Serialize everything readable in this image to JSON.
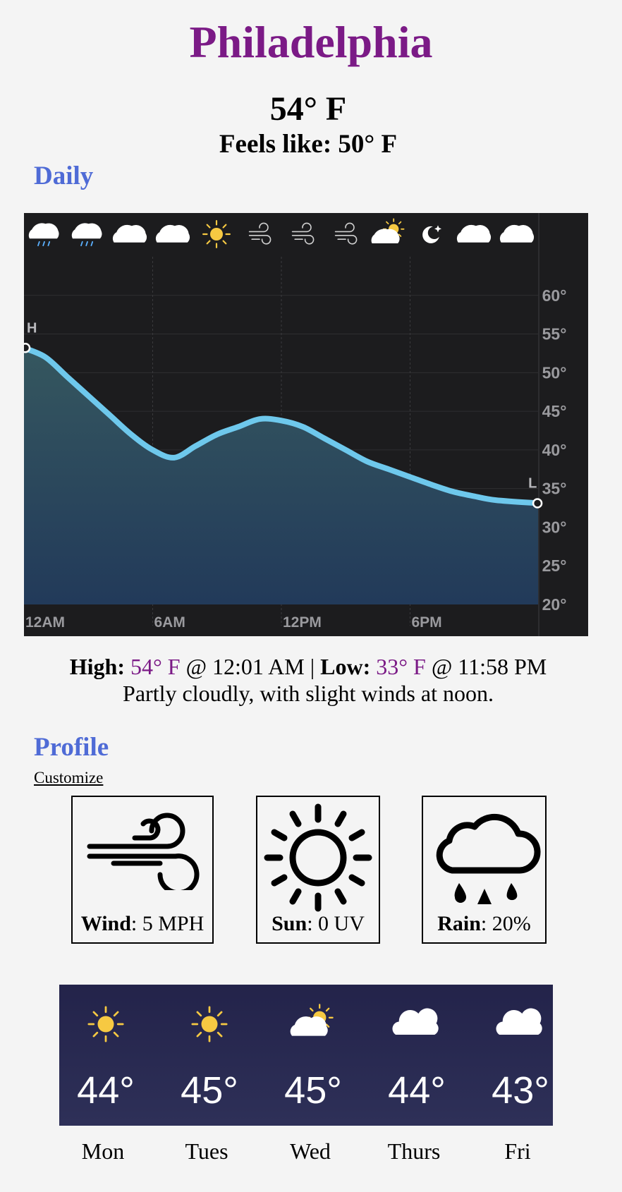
{
  "header": {
    "city": "Philadelphia",
    "temperature": "54° F",
    "feels_like": "Feels like: 50° F"
  },
  "daily": {
    "title": "Daily",
    "icons": [
      "cloud-rain-icon",
      "cloud-rain-icon",
      "cloud-icon",
      "cloud-icon",
      "sun-icon",
      "wind-icon",
      "wind-icon",
      "wind-icon",
      "partly-sunny-icon",
      "moon-star-icon",
      "cloud-icon",
      "cloud-icon"
    ],
    "high_marker": "H",
    "low_marker": "L",
    "summary": {
      "high_label": "High:",
      "high_value": "54° F",
      "high_time": " @ 12:01 AM | ",
      "low_label": "Low:",
      "low_value": "33° F",
      "low_time": " @ 11:58 PM",
      "description": "Partly cloudly, with slight winds at noon."
    }
  },
  "chart_data": {
    "type": "area",
    "x": [
      0,
      1,
      2,
      3,
      4,
      5,
      6,
      7,
      8,
      9,
      10,
      11,
      12,
      13,
      14,
      15,
      16,
      17,
      18,
      19,
      20,
      21,
      22,
      23.97
    ],
    "values": [
      53.2,
      52,
      49.5,
      47,
      44.5,
      42,
      40,
      39,
      40.5,
      42,
      43,
      44,
      43.8,
      43,
      41.5,
      40,
      38.5,
      37.5,
      36.5,
      35.5,
      34.6,
      34,
      33.5,
      33.1
    ],
    "x_tick_labels": [
      "12AM",
      "6AM",
      "12PM",
      "6PM"
    ],
    "x_ticks": [
      0,
      6,
      12,
      18
    ],
    "xlim": [
      0,
      24
    ],
    "y_ticks": [
      20,
      25,
      30,
      35,
      40,
      45,
      50,
      55,
      60
    ],
    "y_tick_labels": [
      "20°",
      "25°",
      "30°",
      "35°",
      "40°",
      "45°",
      "50°",
      "55°",
      "60°"
    ],
    "ylim": [
      20,
      65
    ],
    "grid": true,
    "colors": {
      "background": "#1c1c1e",
      "line": "#6ec8ec",
      "fill_top": "#35575f",
      "fill_bottom": "#223a5a",
      "text": "#9a9a9e"
    }
  },
  "profile": {
    "title": "Profile",
    "customize": "Customize",
    "wind": {
      "label": "Wind",
      "value": ": 5 MPH",
      "icon": "wind-icon"
    },
    "sun": {
      "label": "Sun",
      "value": ": 0 UV",
      "icon": "sun-icon"
    },
    "rain": {
      "label": "Rain",
      "value": ": 20%",
      "icon": "cloud-rain-icon"
    }
  },
  "weekly": [
    {
      "day": "Mon",
      "temp": "44°",
      "icon": "sun-icon"
    },
    {
      "day": "Tues",
      "temp": "45°",
      "icon": "sun-icon"
    },
    {
      "day": "Wed",
      "temp": "45°",
      "icon": "partly-sunny-icon"
    },
    {
      "day": "Thurs",
      "temp": "44°",
      "icon": "cloud-icon"
    },
    {
      "day": "Fri",
      "temp": "43°",
      "icon": "cloud-icon"
    }
  ],
  "colors": {
    "accent_purple": "#7b1a86",
    "section_blue": "#4f6bd6",
    "weekly_bg": "#26274d",
    "sun_yellow": "#f6c942"
  }
}
